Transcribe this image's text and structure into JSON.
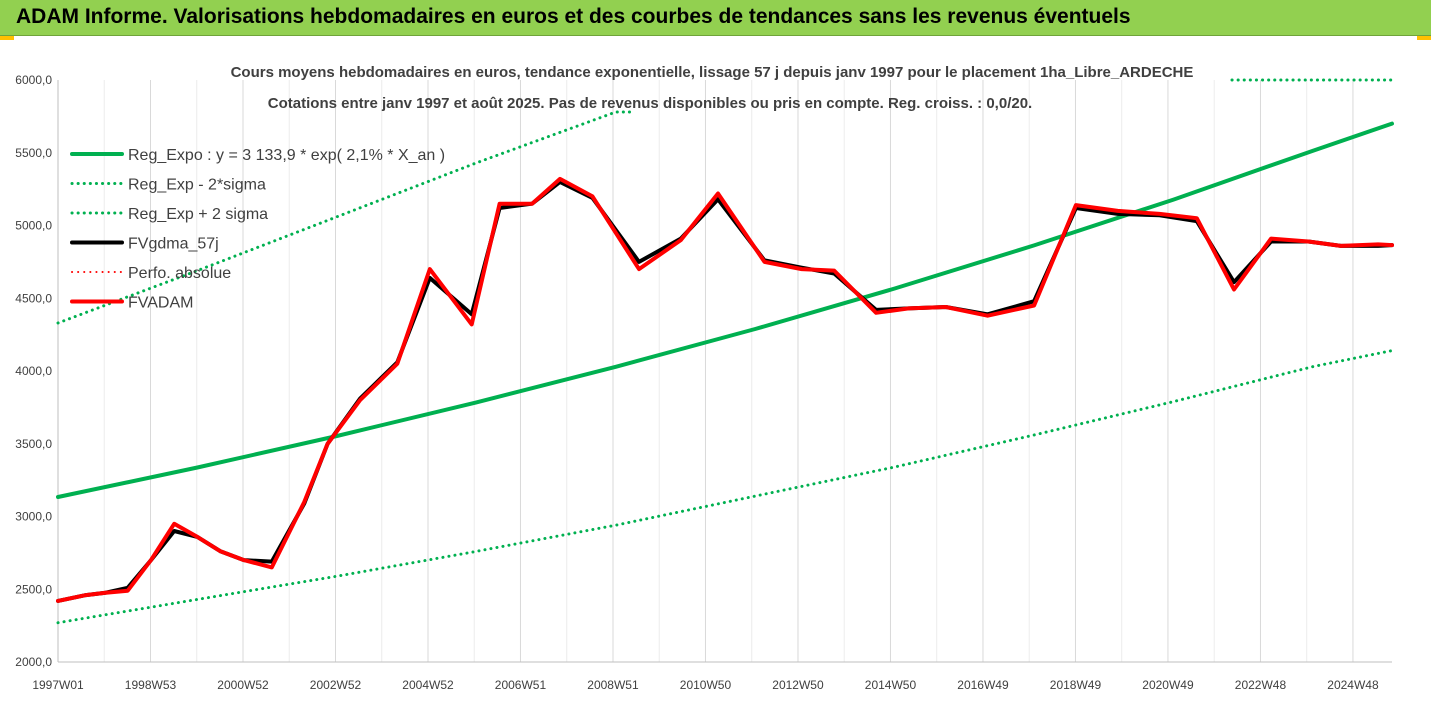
{
  "banner": {
    "title": "ADAM Informe. Valorisations hebdomadaires en euros et des courbes de tendances sans les revenus éventuels"
  },
  "colors": {
    "banner_bg": "#92d050",
    "corner_accent": "#ffc000",
    "green": "#00b050",
    "black": "#000000",
    "red": "#ff0000"
  },
  "chart_data": {
    "type": "line",
    "title": "Cours moyens hebdomadaires en euros, tendance exponentielle, lissage 57 j depuis janv 1997 pour le placement 1ha_Libre_ARDECHE",
    "subtitle": "Cotations entre janv 1997 et août 2025. Pas de revenus disponibles ou pris en compte. Reg. croiss. : 0,0/20.",
    "x_tick_labels": [
      "1997W01",
      "1998W53",
      "2000W52",
      "2002W52",
      "2004W52",
      "2006W51",
      "2008W51",
      "2010W50",
      "2012W50",
      "2014W50",
      "2016W49",
      "2018W49",
      "2020W49",
      "2022W48",
      "2024W48"
    ],
    "y_tick_labels": [
      "2000,0",
      "2500,0",
      "3000,0",
      "3500,0",
      "4000,0",
      "4500,0",
      "5000,0",
      "5500,0",
      "6000,0"
    ],
    "ylim": [
      2000,
      6000
    ],
    "xlim": [
      1997.0,
      2025.7
    ],
    "grid": "vertical",
    "legend_position": "top-left",
    "legend": [
      {
        "label": "Reg_Expo : y = 3 133,9 * exp( 2,1% *  X_an )",
        "color": "#00b050",
        "style": "solid",
        "width": 4
      },
      {
        "label": "Reg_Exp - 2*sigma",
        "color": "#00b050",
        "style": "dotted",
        "width": 3
      },
      {
        "label": "Reg_Exp + 2 sigma",
        "color": "#00b050",
        "style": "dotted",
        "width": 3
      },
      {
        "label": "FVgdma_57j",
        "color": "#000000",
        "style": "solid",
        "width": 4
      },
      {
        "label": "Perfo. absolue",
        "color": "#ff0000",
        "style": "dotted",
        "width": 2
      },
      {
        "label": "FVADAM",
        "color": "#ff0000",
        "style": "solid",
        "width": 4
      }
    ],
    "series": [
      {
        "name": "FVADAM",
        "x": [
          1997.0,
          1997.6,
          1998.0,
          1998.5,
          1999.0,
          1999.5,
          2000.0,
          2000.5,
          2001.0,
          2001.6,
          2002.3,
          2002.8,
          2003.5,
          2004.3,
          2005.0,
          2005.9,
          2006.5,
          2007.2,
          2007.8,
          2008.5,
          2009.5,
          2010.4,
          2011.2,
          2012.2,
          2013.0,
          2013.7,
          2014.6,
          2015.3,
          2016.1,
          2017.0,
          2018.0,
          2018.9,
          2019.8,
          2020.7,
          2021.5,
          2022.3,
          2023.1,
          2023.9,
          2024.6,
          2025.4,
          2025.7
        ],
        "y": [
          2420,
          2460,
          2475,
          2490,
          2700,
          2950,
          2860,
          2760,
          2700,
          2650,
          3100,
          3500,
          3800,
          4050,
          4700,
          4320,
          5150,
          5150,
          5320,
          5200,
          4700,
          4900,
          5220,
          4750,
          4700,
          4690,
          4400,
          4430,
          4440,
          4380,
          4450,
          5140,
          5100,
          5080,
          5050,
          4560,
          4910,
          4890,
          4860,
          4870,
          4865
        ]
      },
      {
        "name": "FVgdma_57j",
        "x": [
          1997.0,
          1997.6,
          1998.0,
          1998.5,
          1999.0,
          1999.5,
          2000.0,
          2000.5,
          2001.0,
          2001.6,
          2002.3,
          2002.8,
          2003.5,
          2004.3,
          2005.0,
          2005.9,
          2006.5,
          2007.2,
          2007.8,
          2008.5,
          2009.5,
          2010.4,
          2011.2,
          2012.2,
          2013.0,
          2013.7,
          2014.6,
          2015.3,
          2016.1,
          2017.0,
          2018.0,
          2018.9,
          2019.8,
          2020.7,
          2021.5,
          2022.3,
          2023.1,
          2023.9,
          2024.6,
          2025.4,
          2025.7
        ],
        "y": [
          2420,
          2460,
          2475,
          2510,
          2700,
          2900,
          2860,
          2760,
          2700,
          2690,
          3090,
          3500,
          3810,
          4060,
          4640,
          4390,
          5120,
          5150,
          5300,
          5190,
          4750,
          4910,
          5180,
          4760,
          4710,
          4670,
          4420,
          4430,
          4440,
          4390,
          4480,
          5120,
          5080,
          5070,
          5030,
          4610,
          4890,
          4890,
          4860,
          4860,
          4865
        ]
      },
      {
        "name": "Reg_Expo : y = 3 133,9 * exp( 2,1% *  X_an )",
        "x": [
          1997.0,
          2000.0,
          2003.0,
          2006.0,
          2009.0,
          2012.0,
          2015.0,
          2018.0,
          2021.0,
          2024.0,
          2025.7
        ],
        "y": [
          3134,
          3337,
          3553,
          3784,
          4029,
          4289,
          4567,
          4863,
          5178,
          5514,
          5700
        ]
      },
      {
        "name": "Reg_Exp + 2 sigma",
        "x": [
          1997.0,
          2000.0,
          2003.0,
          2006.0,
          2009.0,
          2009.4
        ],
        "y": [
          4330,
          4690,
          5060,
          5430,
          5780,
          5780
        ]
      },
      {
        "name": "Reg_Exp - 2*sigma",
        "x": [
          1997.0,
          2000.0,
          2003.0,
          2006.0,
          2009.0,
          2012.0,
          2015.0,
          2018.0,
          2021.0,
          2024.0,
          2025.7
        ],
        "y": [
          2270,
          2430,
          2590,
          2760,
          2940,
          3140,
          3340,
          3560,
          3790,
          4030,
          4140
        ]
      }
    ]
  }
}
